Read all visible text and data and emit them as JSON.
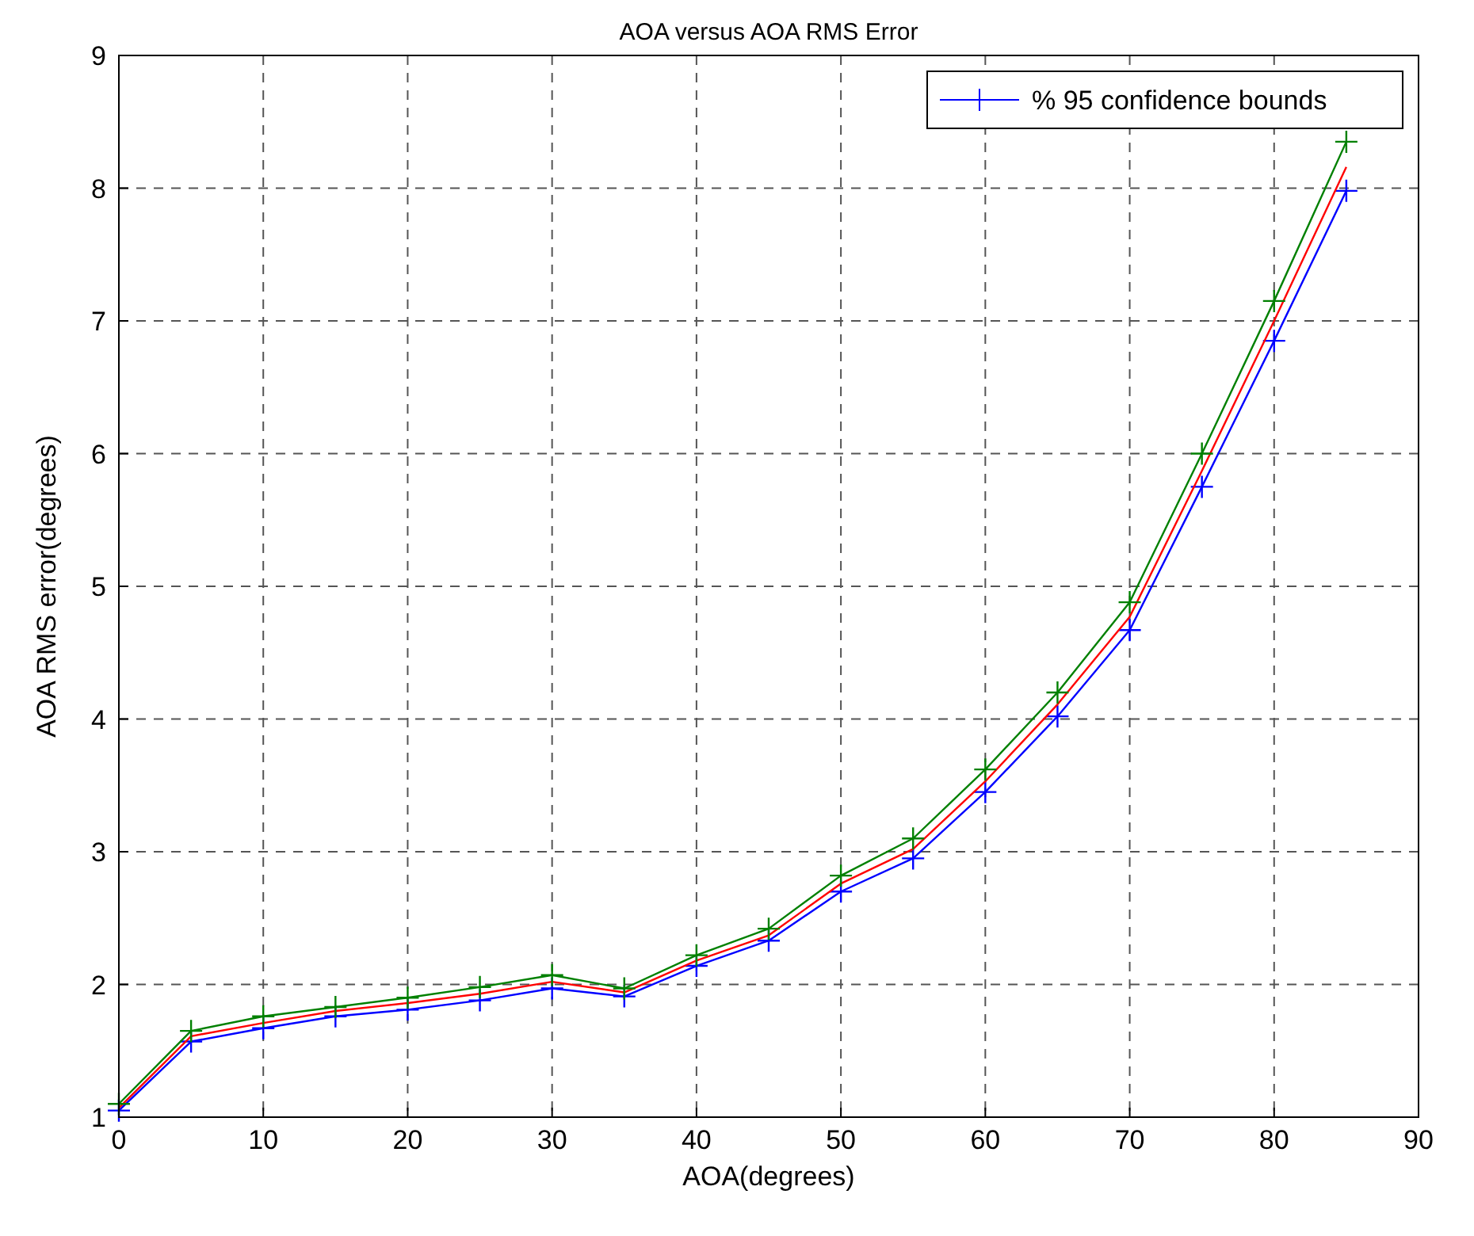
{
  "chart_data": {
    "type": "line",
    "title": "AOA versus AOA RMS Error",
    "xlabel": "AOA(degrees)",
    "ylabel": "AOA RMS error(degrees)",
    "x": [
      0,
      5,
      10,
      15,
      20,
      25,
      30,
      35,
      40,
      45,
      50,
      55,
      60,
      65,
      70,
      75,
      80,
      85
    ],
    "series": [
      {
        "name": "% 95 confidence bounds",
        "color": "#0000ff",
        "marker": "cross",
        "values": [
          1.05,
          1.57,
          1.67,
          1.76,
          1.81,
          1.88,
          1.97,
          1.91,
          2.14,
          2.33,
          2.7,
          2.95,
          3.45,
          4.02,
          4.67,
          5.75,
          6.85,
          7.98
        ]
      },
      {
        "color": "#ff0000",
        "marker": "none",
        "values": [
          1.07,
          1.61,
          1.71,
          1.8,
          1.86,
          1.93,
          2.02,
          1.94,
          2.18,
          2.37,
          2.76,
          3.02,
          3.53,
          4.11,
          4.77,
          5.87,
          7.0,
          8.16
        ]
      },
      {
        "color": "#008000",
        "marker": "cross",
        "values": [
          1.1,
          1.65,
          1.76,
          1.83,
          1.9,
          1.98,
          2.07,
          1.97,
          2.22,
          2.42,
          2.82,
          3.1,
          3.62,
          4.2,
          4.88,
          6.0,
          7.15,
          8.35
        ]
      }
    ],
    "xlim": [
      0,
      90
    ],
    "xticks": [
      0,
      10,
      20,
      30,
      40,
      50,
      60,
      70,
      80,
      90
    ],
    "ylim": [
      1,
      9
    ],
    "yticks": [
      1,
      2,
      3,
      4,
      5,
      6,
      7,
      8,
      9
    ],
    "grid": true,
    "legend": "top right",
    "line_style": "solid"
  }
}
